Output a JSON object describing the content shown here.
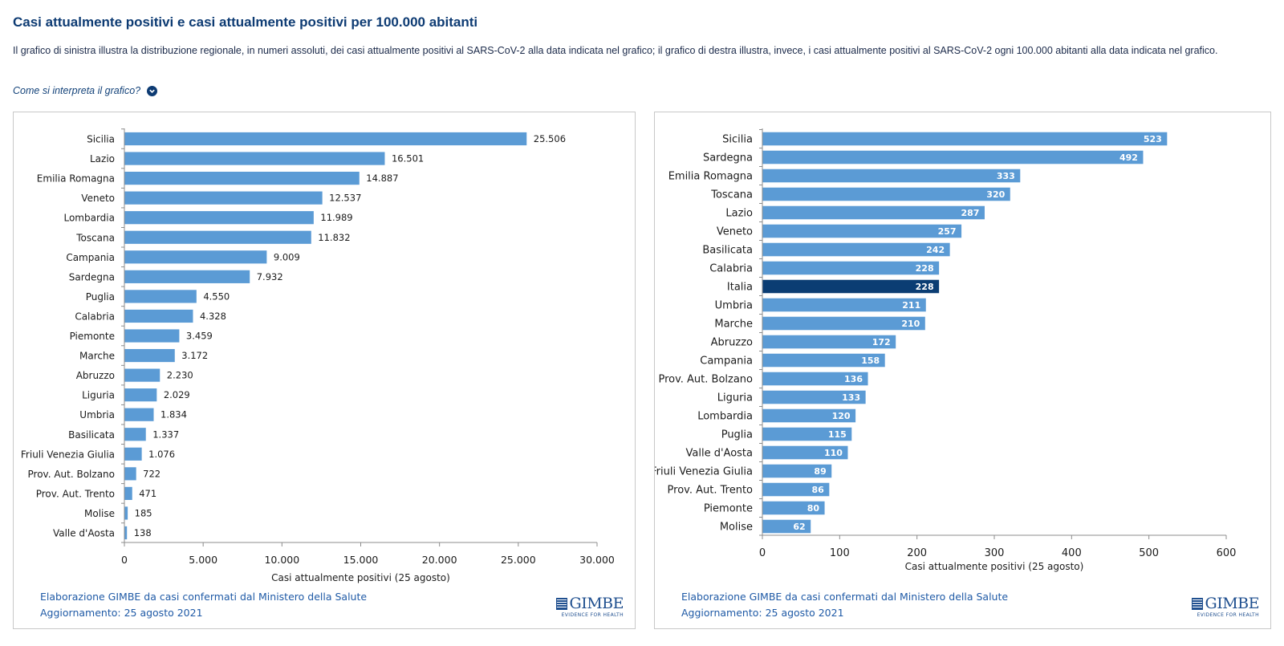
{
  "page": {
    "title": "Casi attualmente positivi e casi attualmente positivi per 100.000 abitanti",
    "description": "Il grafico di sinistra illustra la distribuzione regionale, in numeri assoluti, dei casi attualmente positivi al SARS-CoV-2 alla data indicata nel grafico; il grafico di destra illustra, invece, i casi attualmente positivi al SARS-CoV-2 ogni 100.000 abitanti alla data indicata nel grafico.",
    "help_link": "Come si interpreta il grafico?"
  },
  "panels": [
    {
      "source_line1": "Elaborazione GIMBE da casi confermati dal Ministero della Salute",
      "source_line2": "Aggiornamento: 25 agosto 2021",
      "logo_text": "GIMBE",
      "logo_tagline": "EVIDENCE FOR HEALTH"
    },
    {
      "source_line1": "Elaborazione GIMBE da casi confermati dal Ministero della Salute",
      "source_line2": "Aggiornamento: 25 agosto 2021",
      "logo_text": "GIMBE",
      "logo_tagline": "EVIDENCE FOR HEALTH"
    }
  ],
  "chart_data": [
    {
      "type": "bar",
      "orientation": "horizontal",
      "xlabel": "Casi attualmente positivi (25 agosto)",
      "xlim": [
        0,
        30000
      ],
      "xticks": [
        0,
        5000,
        10000,
        15000,
        20000,
        25000,
        30000
      ],
      "xtick_labels": [
        "0",
        "5.000",
        "10.000",
        "15.000",
        "20.000",
        "25.000",
        "30.000"
      ],
      "data_label_position": "outside",
      "bar_color": "#5b9bd5",
      "categories": [
        "Sicilia",
        "Lazio",
        "Emilia Romagna",
        "Veneto",
        "Lombardia",
        "Toscana",
        "Campania",
        "Sardegna",
        "Puglia",
        "Calabria",
        "Piemonte",
        "Marche",
        "Abruzzo",
        "Liguria",
        "Umbria",
        "Basilicata",
        "Friuli Venezia Giulia",
        "Prov. Aut. Bolzano",
        "Prov. Aut. Trento",
        "Molise",
        "Valle d'Aosta"
      ],
      "values": [
        25506,
        16501,
        14887,
        12537,
        11989,
        11832,
        9009,
        7932,
        4550,
        4328,
        3459,
        3172,
        2230,
        2029,
        1834,
        1337,
        1076,
        722,
        471,
        185,
        138
      ],
      "value_labels": [
        "25.506",
        "16.501",
        "14.887",
        "12.537",
        "11.989",
        "11.832",
        "9.009",
        "7.932",
        "4.550",
        "4.328",
        "3.459",
        "3.172",
        "2.230",
        "2.029",
        "1.834",
        "1.337",
        "1.076",
        "722",
        "471",
        "185",
        "138"
      ]
    },
    {
      "type": "bar",
      "orientation": "horizontal",
      "xlabel": "Casi attualmente positivi (25 agosto)",
      "xlim": [
        0,
        600
      ],
      "xticks": [
        0,
        100,
        200,
        300,
        400,
        500,
        600
      ],
      "xtick_labels": [
        "0",
        "100",
        "200",
        "300",
        "400",
        "500",
        "600"
      ],
      "data_label_position": "inside",
      "bar_color": "#5b9bd5",
      "highlight_color": "#0b3d73",
      "highlight_category": "Italia",
      "categories": [
        "Sicilia",
        "Sardegna",
        "Emilia Romagna",
        "Toscana",
        "Lazio",
        "Veneto",
        "Basilicata",
        "Calabria",
        "Italia",
        "Umbria",
        "Marche",
        "Abruzzo",
        "Campania",
        "Prov. Aut. Bolzano",
        "Liguria",
        "Lombardia",
        "Puglia",
        "Valle d'Aosta",
        "Friuli Venezia Giulia",
        "Prov. Aut. Trento",
        "Piemonte",
        "Molise"
      ],
      "values": [
        523,
        492,
        333,
        320,
        287,
        257,
        242,
        228,
        228,
        211,
        210,
        172,
        158,
        136,
        133,
        120,
        115,
        110,
        89,
        86,
        80,
        62
      ],
      "value_labels": [
        "523",
        "492",
        "333",
        "320",
        "287",
        "257",
        "242",
        "228",
        "228",
        "211",
        "210",
        "172",
        "158",
        "136",
        "133",
        "120",
        "115",
        "110",
        "89",
        "86",
        "80",
        "62"
      ]
    }
  ]
}
